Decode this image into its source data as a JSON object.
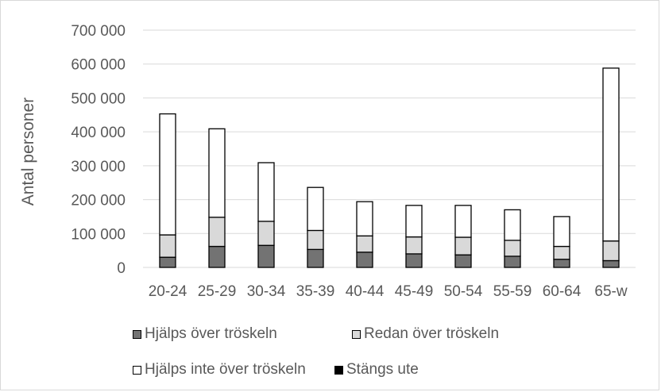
{
  "chart_data": {
    "type": "bar",
    "stacked": true,
    "title": "",
    "xlabel": "",
    "ylabel": "Antal personer",
    "ylim": [
      0,
      700000
    ],
    "yticks": [
      0,
      100000,
      200000,
      300000,
      400000,
      500000,
      600000,
      700000
    ],
    "ytick_labels": [
      "0",
      "100 000",
      "200 000",
      "300 000",
      "400 000",
      "500 000",
      "600 000",
      "700 000"
    ],
    "grid": true,
    "legend_position": "bottom",
    "categories": [
      "20-24",
      "25-29",
      "30-34",
      "35-39",
      "40-44",
      "45-49",
      "50-54",
      "55-59",
      "60-64",
      "65-w"
    ],
    "series": [
      {
        "name": "Hjälps över tröskeln",
        "color": "#737373",
        "values": [
          30000,
          62000,
          65000,
          53000,
          45000,
          40000,
          37000,
          33000,
          24000,
          20000
        ]
      },
      {
        "name": "Redan över tröskeln",
        "color": "#d9d9d9",
        "values": [
          66000,
          86000,
          71000,
          56000,
          48000,
          50000,
          52000,
          47000,
          38000,
          58000
        ]
      },
      {
        "name": "Hjälps inte över tröskeln",
        "color": "#ffffff",
        "values": [
          357000,
          261000,
          173000,
          127000,
          101000,
          93000,
          94000,
          90000,
          88000,
          510000
        ]
      },
      {
        "name": "Stängs ute",
        "color": "#000000",
        "values": [
          0,
          0,
          0,
          0,
          0,
          0,
          0,
          0,
          0,
          0
        ]
      }
    ]
  }
}
